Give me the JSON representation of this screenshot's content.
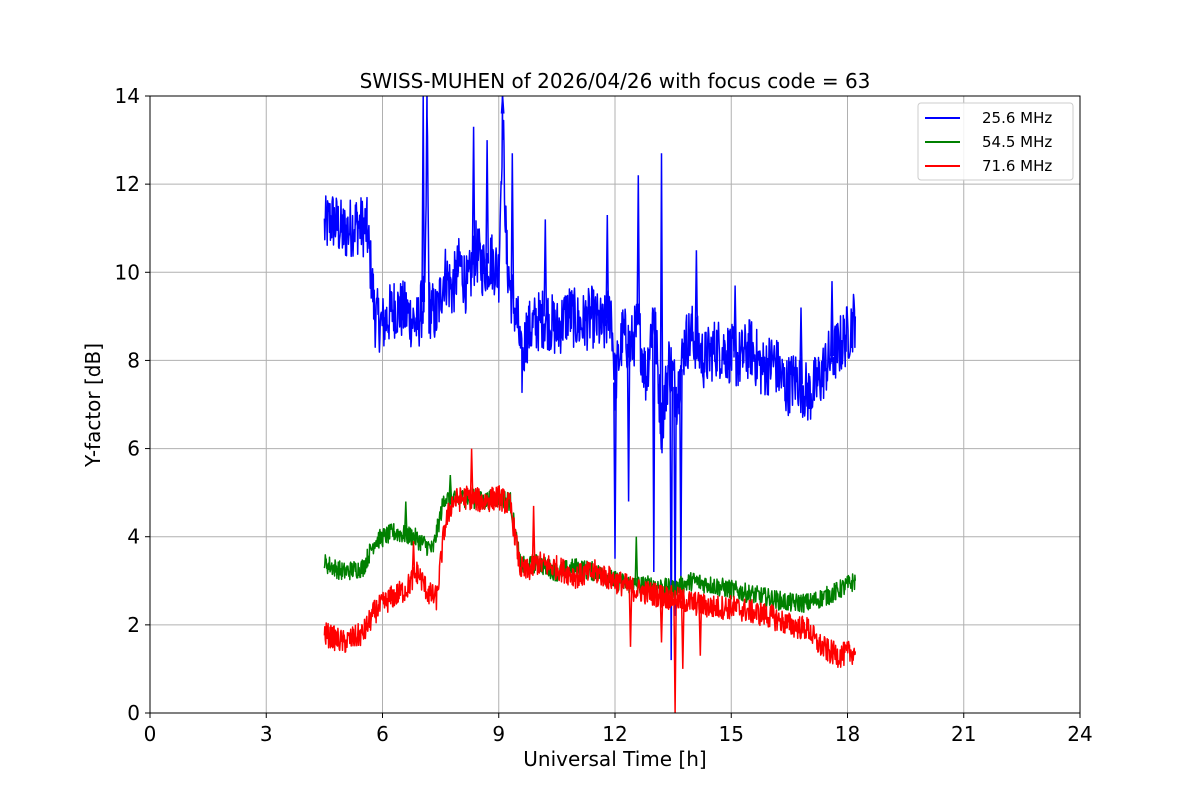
{
  "chart_data": {
    "type": "line",
    "title": "SWISS-MUHEN of 2026/04/26 with focus code = 63",
    "xlabel": "Universal Time [h]",
    "ylabel": "Y-factor [dB]",
    "xlim": [
      0,
      24
    ],
    "ylim": [
      0,
      14
    ],
    "xticks": [
      0,
      3,
      6,
      9,
      12,
      15,
      18,
      21,
      24
    ],
    "yticks": [
      0,
      2,
      4,
      6,
      8,
      10,
      12,
      14
    ],
    "grid": true,
    "legend_position": "top-right",
    "series": [
      {
        "name": "25.6 MHz",
        "color": "#0000ff",
        "x": [
          4.5,
          4.7,
          5.0,
          5.3,
          5.6,
          5.75,
          5.8,
          6.0,
          6.3,
          6.6,
          6.9,
          7.1,
          7.15,
          7.2,
          7.4,
          7.6,
          7.8,
          8.0,
          8.2,
          8.4,
          8.6,
          8.8,
          9.0,
          9.1,
          9.2,
          9.3,
          9.5,
          9.6,
          9.7,
          9.9,
          10.2,
          10.5,
          10.8,
          11.1,
          11.4,
          11.7,
          11.9,
          12.0,
          12.2,
          12.4,
          12.6,
          12.8,
          13.0,
          13.2,
          13.4,
          13.6,
          13.8,
          14.0,
          14.3,
          14.6,
          14.9,
          15.2,
          15.5,
          15.8,
          16.1,
          16.4,
          16.7,
          17.0,
          17.3,
          17.5,
          17.7,
          18.0,
          18.2
        ],
        "y": [
          11.0,
          11.2,
          10.9,
          11.1,
          11.0,
          9.6,
          9.0,
          8.8,
          9.2,
          9.1,
          8.8,
          9.5,
          13.8,
          9.2,
          9.0,
          10.0,
          9.6,
          10.2,
          9.6,
          10.5,
          10.1,
          10.3,
          10.0,
          13.6,
          10.4,
          9.6,
          8.8,
          7.8,
          8.6,
          8.8,
          9.0,
          8.7,
          9.1,
          8.8,
          9.0,
          8.7,
          9.2,
          7.5,
          8.6,
          8.3,
          8.8,
          7.6,
          9.2,
          6.5,
          8.0,
          7.2,
          8.4,
          8.6,
          8.0,
          8.3,
          8.2,
          8.0,
          8.3,
          7.8,
          8.0,
          7.4,
          7.6,
          7.2,
          7.6,
          8.0,
          8.2,
          8.6,
          9.0
        ],
        "spikes": [
          [
            7.05,
            14.0
          ],
          [
            8.35,
            13.3
          ],
          [
            8.7,
            13.0
          ],
          [
            9.1,
            14.0
          ],
          [
            9.35,
            12.7
          ],
          [
            10.2,
            11.2
          ],
          [
            11.8,
            11.3
          ],
          [
            12.0,
            3.5
          ],
          [
            12.35,
            4.8
          ],
          [
            12.6,
            12.2
          ],
          [
            13.0,
            3.2
          ],
          [
            13.2,
            12.7
          ],
          [
            13.45,
            1.2
          ],
          [
            13.55,
            2.2
          ],
          [
            13.7,
            3.0
          ],
          [
            14.1,
            10.5
          ],
          [
            15.1,
            9.7
          ],
          [
            16.8,
            9.2
          ],
          [
            17.6,
            9.8
          ]
        ]
      },
      {
        "name": "54.5 MHz",
        "color": "#008000",
        "x": [
          4.5,
          5.0,
          5.5,
          5.8,
          6.3,
          6.8,
          7.3,
          7.6,
          7.8,
          8.2,
          8.6,
          9.0,
          9.3,
          9.55,
          9.7,
          10.0,
          10.5,
          11.0,
          11.5,
          12.0,
          12.5,
          13.0,
          13.5,
          14.0,
          14.5,
          15.0,
          15.5,
          16.0,
          16.5,
          17.0,
          17.3,
          17.6,
          18.0,
          18.2
        ],
        "y": [
          3.4,
          3.2,
          3.3,
          3.9,
          4.1,
          4.0,
          3.7,
          4.9,
          4.8,
          4.9,
          4.8,
          4.9,
          4.8,
          3.4,
          3.3,
          3.4,
          3.2,
          3.3,
          3.2,
          3.0,
          2.9,
          2.9,
          2.8,
          3.0,
          2.9,
          2.8,
          2.7,
          2.6,
          2.5,
          2.5,
          2.6,
          2.7,
          2.9,
          3.0
        ],
        "spikes": [
          [
            6.6,
            4.8
          ],
          [
            7.75,
            5.4
          ],
          [
            12.55,
            4.0
          ]
        ]
      },
      {
        "name": "71.6 MHz",
        "color": "#ff0000",
        "x": [
          4.5,
          5.0,
          5.5,
          5.8,
          6.2,
          6.6,
          6.9,
          7.2,
          7.4,
          7.6,
          7.8,
          8.2,
          8.6,
          9.0,
          9.3,
          9.55,
          9.7,
          10.0,
          10.5,
          11.0,
          11.5,
          12.0,
          12.5,
          13.0,
          13.5,
          14.0,
          14.5,
          15.0,
          15.5,
          16.0,
          16.5,
          17.0,
          17.2,
          17.5,
          17.8,
          18.2
        ],
        "y": [
          1.8,
          1.6,
          1.8,
          2.3,
          2.6,
          2.8,
          3.2,
          2.7,
          2.6,
          4.2,
          4.8,
          4.9,
          4.8,
          4.9,
          4.7,
          3.3,
          3.2,
          3.4,
          3.3,
          3.1,
          3.2,
          3.0,
          2.8,
          2.7,
          2.6,
          2.5,
          2.4,
          2.4,
          2.3,
          2.2,
          2.0,
          1.9,
          1.6,
          1.4,
          1.3,
          1.4
        ],
        "spikes": [
          [
            6.8,
            3.9
          ],
          [
            8.3,
            6.0
          ],
          [
            9.9,
            4.7
          ],
          [
            12.4,
            1.5
          ],
          [
            13.2,
            1.6
          ],
          [
            13.55,
            0.0
          ],
          [
            13.75,
            1.0
          ],
          [
            14.2,
            1.3
          ]
        ]
      }
    ]
  }
}
